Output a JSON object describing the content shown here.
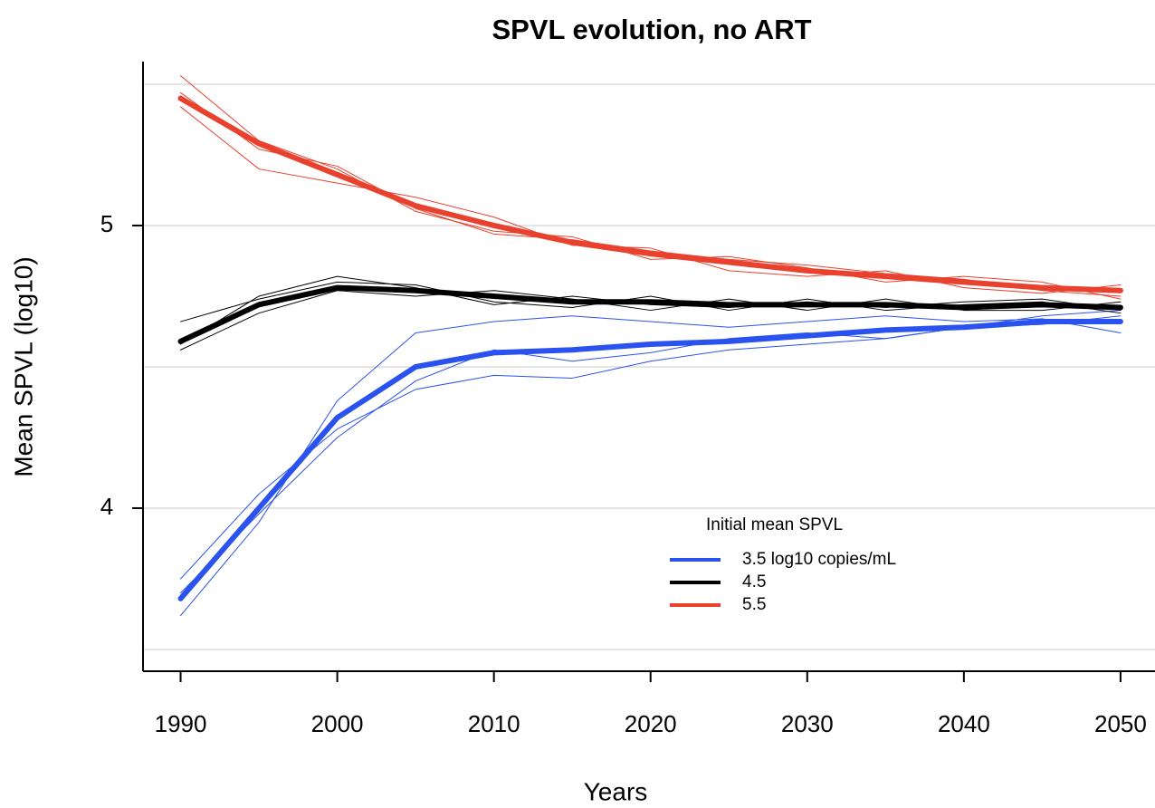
{
  "chart_data": {
    "type": "line",
    "title": "SPVL evolution, no ART",
    "x_label": "Years",
    "y_label": "Mean SPVL (log10)",
    "x": [
      1990,
      1995,
      2000,
      2005,
      2010,
      2015,
      2020,
      2025,
      2030,
      2035,
      2040,
      2045,
      2050
    ],
    "xlim": [
      1987.6,
      2052.2
    ],
    "xticks": [
      1990,
      2000,
      2010,
      2020,
      2030,
      2040,
      2050
    ],
    "ylim": [
      3.423,
      5.58
    ],
    "yticks": [
      4,
      5
    ],
    "grid_lines": [
      3.5,
      4,
      4.5,
      5,
      5.5
    ],
    "legend": {
      "title": "Initial mean SPVL",
      "position": "bottom-right"
    },
    "series": [
      {
        "name": "3.5 log10 copies/mL",
        "color": "#2a52ee",
        "values": [
          3.68,
          4.0,
          4.32,
          4.5,
          4.55,
          4.56,
          4.58,
          4.59,
          4.61,
          4.63,
          4.64,
          4.66,
          4.66
        ]
      },
      {
        "name": "4.5",
        "color": "#000000",
        "values": [
          4.59,
          4.72,
          4.78,
          4.77,
          4.75,
          4.73,
          4.73,
          4.72,
          4.72,
          4.72,
          4.71,
          4.72,
          4.71
        ]
      },
      {
        "name": "5.5",
        "color": "#e8412e",
        "values": [
          5.45,
          5.29,
          5.18,
          5.07,
          5.0,
          4.94,
          4.9,
          4.87,
          4.84,
          4.82,
          4.8,
          4.78,
          4.77
        ]
      }
    ],
    "replicates": [
      {
        "color": "#2a52ee",
        "values": [
          3.62,
          3.95,
          4.38,
          4.62,
          4.66,
          4.68,
          4.66,
          4.64,
          4.66,
          4.68,
          4.66,
          4.67,
          4.62
        ]
      },
      {
        "color": "#2a52ee",
        "values": [
          3.75,
          4.05,
          4.28,
          4.42,
          4.47,
          4.46,
          4.52,
          4.56,
          4.58,
          4.6,
          4.64,
          4.65,
          4.68
        ]
      },
      {
        "color": "#2a52ee",
        "values": [
          3.7,
          3.98,
          4.25,
          4.45,
          4.56,
          4.52,
          4.55,
          4.6,
          4.62,
          4.6,
          4.64,
          4.68,
          4.7
        ]
      },
      {
        "color": "#000000",
        "values": [
          4.66,
          4.74,
          4.8,
          4.79,
          4.73,
          4.71,
          4.75,
          4.7,
          4.74,
          4.7,
          4.72,
          4.73,
          4.69
        ]
      },
      {
        "color": "#000000",
        "values": [
          4.56,
          4.69,
          4.77,
          4.75,
          4.77,
          4.74,
          4.7,
          4.74,
          4.7,
          4.74,
          4.7,
          4.7,
          4.73
        ]
      },
      {
        "color": "#000000",
        "values": [
          4.58,
          4.75,
          4.82,
          4.78,
          4.72,
          4.75,
          4.72,
          4.71,
          4.73,
          4.71,
          4.73,
          4.74,
          4.7
        ]
      },
      {
        "color": "#e8412e",
        "values": [
          5.53,
          5.3,
          5.2,
          5.05,
          4.98,
          4.96,
          4.88,
          4.89,
          4.85,
          4.8,
          4.82,
          4.8,
          4.74
        ]
      },
      {
        "color": "#e8412e",
        "values": [
          5.42,
          5.2,
          5.15,
          5.1,
          5.03,
          4.93,
          4.92,
          4.84,
          4.82,
          4.84,
          4.78,
          4.76,
          4.79
        ]
      },
      {
        "color": "#e8412e",
        "values": [
          5.47,
          5.27,
          5.21,
          5.06,
          4.97,
          4.95,
          4.91,
          4.88,
          4.86,
          4.83,
          4.81,
          4.77,
          4.75
        ]
      }
    ]
  }
}
